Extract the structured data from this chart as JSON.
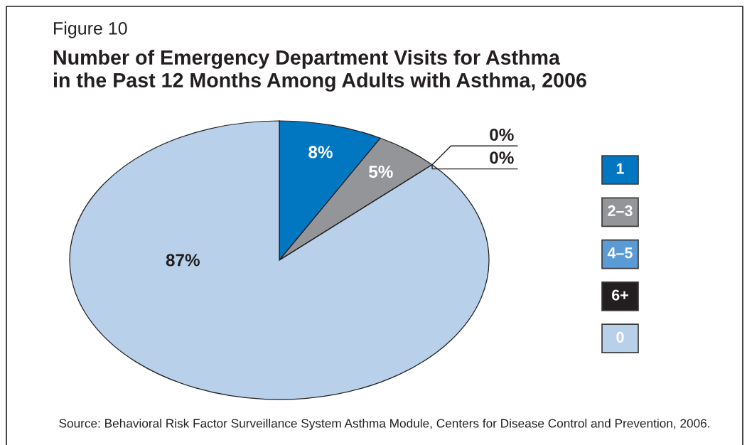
{
  "chart_data": {
    "type": "pie",
    "title": "Number of Emergency Department Visits for Asthma\nin the Past 12 Months Among Adults with Asthma, 2006",
    "annotations": [
      "Figure 10",
      "Source: Behavioral Risk Factor Surveillance System Asthma Module, Centers for Disease Control and Prevention, 2006."
    ],
    "categories": [
      "1",
      "2–3",
      "4–5",
      "6+",
      "0"
    ],
    "values": [
      8,
      5,
      0,
      0,
      87
    ],
    "value_labels": [
      "8%",
      "5%",
      "0%",
      "0%",
      "87%"
    ],
    "colors": [
      "#0077c0",
      "#939598",
      "#5b9bd5",
      "#231f20",
      "#b8d0ea"
    ],
    "legend": "right"
  }
}
